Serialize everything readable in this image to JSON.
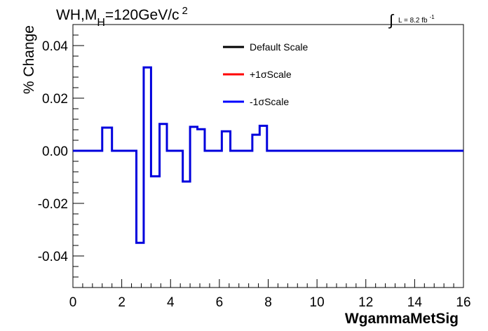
{
  "chart_data": {
    "type": "line",
    "title": {
      "prefix": "WH,M",
      "subscript": "H",
      "main": "=120GeV/c",
      "superscript": "2"
    },
    "lumi": {
      "symbol": "∫",
      "text": "L = 8.2 fb",
      "superscript": "-1"
    },
    "xlabel": "WgammaMetSig",
    "ylabel": "% Change",
    "xlim": [
      0,
      16
    ],
    "ylim": [
      -0.052,
      0.048
    ],
    "xticks": [
      {
        "v": 0,
        "label": "0"
      },
      {
        "v": 2,
        "label": "2"
      },
      {
        "v": 4,
        "label": "4"
      },
      {
        "v": 6,
        "label": "6"
      },
      {
        "v": 8,
        "label": "8"
      },
      {
        "v": 10,
        "label": "10"
      },
      {
        "v": 12,
        "label": "12"
      },
      {
        "v": 14,
        "label": "14"
      },
      {
        "v": 16,
        "label": "16"
      }
    ],
    "yticks": [
      {
        "v": 0.04,
        "label": "0.04"
      },
      {
        "v": 0.02,
        "label": "0.02"
      },
      {
        "v": 0.0,
        "label": "0.00"
      },
      {
        "v": -0.02,
        "label": "-0.02"
      },
      {
        "v": -0.04,
        "label": "-0.04"
      }
    ],
    "x_minor_step": 0.4,
    "y_minor_step": 0.004,
    "legend": [
      {
        "label": "Default Scale",
        "color": "#000000"
      },
      {
        "label": "+1σScale",
        "color": "#ff0000"
      },
      {
        "label": "-1σScale",
        "color": "#0000ff"
      }
    ],
    "series": [
      {
        "name": "-1σScale",
        "color": "#0000dd",
        "bins": [
          {
            "x0": 0.0,
            "x1": 1.2,
            "y": 0.0
          },
          {
            "x0": 1.2,
            "x1": 1.6,
            "y": 0.0088
          },
          {
            "x0": 1.6,
            "x1": 2.6,
            "y": 0.0
          },
          {
            "x0": 2.6,
            "x1": 2.9,
            "y": -0.035
          },
          {
            "x0": 2.9,
            "x1": 3.2,
            "y": 0.0317
          },
          {
            "x0": 3.2,
            "x1": 3.55,
            "y": -0.0097
          },
          {
            "x0": 3.55,
            "x1": 3.85,
            "y": 0.0102
          },
          {
            "x0": 3.85,
            "x1": 4.5,
            "y": 0.0
          },
          {
            "x0": 4.5,
            "x1": 4.8,
            "y": -0.0117
          },
          {
            "x0": 4.8,
            "x1": 5.1,
            "y": 0.0091
          },
          {
            "x0": 5.1,
            "x1": 5.4,
            "y": 0.0082
          },
          {
            "x0": 5.4,
            "x1": 6.1,
            "y": 0.0
          },
          {
            "x0": 6.1,
            "x1": 6.45,
            "y": 0.0074
          },
          {
            "x0": 6.45,
            "x1": 7.35,
            "y": 0.0
          },
          {
            "x0": 7.35,
            "x1": 7.65,
            "y": 0.0061
          },
          {
            "x0": 7.65,
            "x1": 7.95,
            "y": 0.0095
          },
          {
            "x0": 7.95,
            "x1": 16.0,
            "y": 0.0
          }
        ]
      }
    ]
  }
}
